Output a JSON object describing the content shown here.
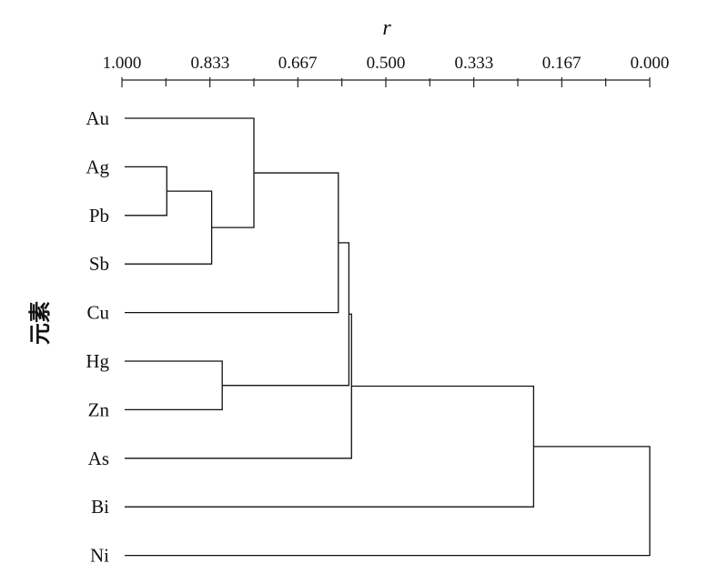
{
  "chart_data": {
    "type": "dendrogram",
    "xlabel": "r",
    "ylabel": "元素",
    "xlim": [
      1.0,
      0.0
    ],
    "axis_position": "top",
    "ticks": [
      {
        "value": 1.0,
        "label": "1.000"
      },
      {
        "value": 0.833,
        "label": "0.833"
      },
      {
        "value": 0.667,
        "label": "0.667"
      },
      {
        "value": 0.5,
        "label": "0.500"
      },
      {
        "value": 0.333,
        "label": "0.333"
      },
      {
        "value": 0.167,
        "label": "0.167"
      },
      {
        "value": 0.0,
        "label": "0.000"
      }
    ],
    "leaves": [
      "Au",
      "Ag",
      "Pb",
      "Sb",
      "Cu",
      "Hg",
      "Zn",
      "As",
      "Bi",
      "Ni"
    ],
    "merges": [
      {
        "id": "c1",
        "left": "Ag",
        "right": "Pb",
        "r": 0.915
      },
      {
        "id": "c2",
        "left": "c1",
        "right": "Sb",
        "r": 0.83
      },
      {
        "id": "c3",
        "left": "Au",
        "right": "c2",
        "r": 0.75
      },
      {
        "id": "c4",
        "left": "Hg",
        "right": "Zn",
        "r": 0.81
      },
      {
        "id": "c5",
        "left": "c3",
        "right": "Cu",
        "r": 0.59
      },
      {
        "id": "c6",
        "left": "c5",
        "right": "c4",
        "r": 0.57
      },
      {
        "id": "c7",
        "left": "c6",
        "right": "As",
        "r": 0.565
      },
      {
        "id": "c8",
        "left": "c7",
        "right": "Bi",
        "r": 0.22
      },
      {
        "id": "c9",
        "left": "c8",
        "right": "Ni",
        "r": 0.0
      }
    ]
  }
}
